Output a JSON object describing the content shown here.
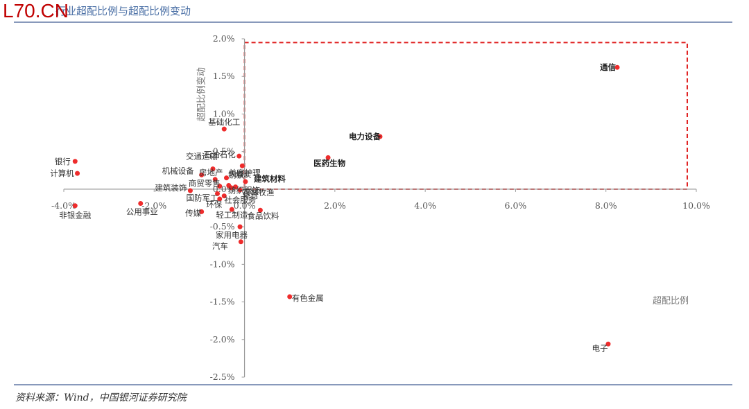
{
  "header": {
    "watermark": "L70.CN",
    "title": "行业超配比例与超配比例变动"
  },
  "footer": {
    "source": "资料来源：Wind，中国银河证券研究院"
  },
  "colors": {
    "point": "#ee2c2c",
    "highlight_box": "#e02020",
    "axis": "#9a9a9a",
    "rule": "#8899bb"
  },
  "chart_data": {
    "type": "scatter",
    "title": "行业超配比例与超配比例变动",
    "xlabel": "超配比例",
    "ylabel": "超配比例变动",
    "xlim": [
      -4.0,
      10.0
    ],
    "ylim": [
      -2.5,
      2.0
    ],
    "x_unit": "%",
    "y_unit": "%",
    "x_ticks": [
      -4.0,
      -2.0,
      0.0,
      2.0,
      4.0,
      6.0,
      8.0,
      10.0
    ],
    "y_ticks": [
      2.0,
      1.5,
      1.0,
      0.5,
      0.0,
      -0.5,
      -1.0,
      -1.5,
      -2.0,
      -2.5
    ],
    "x_tick_labels": [
      "-4.0%",
      "-2.0%",
      "0.0%",
      "2.0%",
      "4.0%",
      "6.0%",
      "8.0%",
      "10.0%"
    ],
    "y_tick_labels": [
      "2.0%",
      "1.5%",
      "1.0%",
      "0.5%",
      "0.0%",
      "-0.5%",
      "-1.0%",
      "-1.5%",
      "-2.0%",
      "-2.5%"
    ],
    "grid": false,
    "highlight_box": {
      "x": [
        0.0,
        9.8
      ],
      "y": [
        0.0,
        1.95
      ]
    },
    "points": [
      {
        "name": "通信",
        "x": 8.25,
        "y": 1.62,
        "bold": true
      },
      {
        "name": "电力设备",
        "x": 3.0,
        "y": 0.7,
        "bold": true
      },
      {
        "name": "医药生物",
        "x": 1.85,
        "y": 0.42,
        "bold": true
      },
      {
        "name": "建筑材料",
        "x": 0.02,
        "y": 0.1,
        "bold": true
      },
      {
        "name": "基础化工",
        "x": -0.45,
        "y": 0.8
      },
      {
        "name": "石油石化",
        "x": -0.12,
        "y": 0.44
      },
      {
        "name": "煤炭",
        "x": -0.05,
        "y": 0.31
      },
      {
        "name": "交通运输",
        "x": -0.7,
        "y": 0.27
      },
      {
        "name": "机械设备",
        "x": -0.95,
        "y": 0.19
      },
      {
        "name": "房地产",
        "x": -0.65,
        "y": 0.13
      },
      {
        "name": "钢铁",
        "x": -0.4,
        "y": 0.15
      },
      {
        "name": "商贸零售",
        "x": -0.55,
        "y": 0.04
      },
      {
        "name": "美容护理",
        "x": -0.35,
        "y": 0.05
      },
      {
        "name": "纺织服饰",
        "x": -0.3,
        "y": 0.02
      },
      {
        "name": "农林牧渔",
        "x": -0.2,
        "y": 0.03
      },
      {
        "name": "综合",
        "x": -0.1,
        "y": -0.01
      },
      {
        "name": "建筑装饰",
        "x": -1.2,
        "y": -0.02
      },
      {
        "name": "国防军工",
        "x": -0.6,
        "y": -0.06
      },
      {
        "name": "社会服务",
        "x": -0.45,
        "y": -0.09
      },
      {
        "name": "环保",
        "x": -0.55,
        "y": -0.13
      },
      {
        "name": "传媒",
        "x": -0.95,
        "y": -0.3
      },
      {
        "name": "轻工制造",
        "x": -0.28,
        "y": -0.27
      },
      {
        "name": "食品饮料",
        "x": 0.35,
        "y": -0.28
      },
      {
        "name": "家用电器",
        "x": -0.1,
        "y": -0.5
      },
      {
        "name": "汽车",
        "x": -0.08,
        "y": -0.7
      },
      {
        "name": "银行",
        "x": -3.75,
        "y": 0.37
      },
      {
        "name": "计算机",
        "x": -3.7,
        "y": 0.21
      },
      {
        "name": "非银金融",
        "x": -3.75,
        "y": -0.22
      },
      {
        "name": "公用事业",
        "x": -2.3,
        "y": -0.19
      },
      {
        "name": "有色金属",
        "x": 1.0,
        "y": -1.43
      },
      {
        "name": "电子",
        "x": 8.05,
        "y": -2.06
      }
    ]
  }
}
